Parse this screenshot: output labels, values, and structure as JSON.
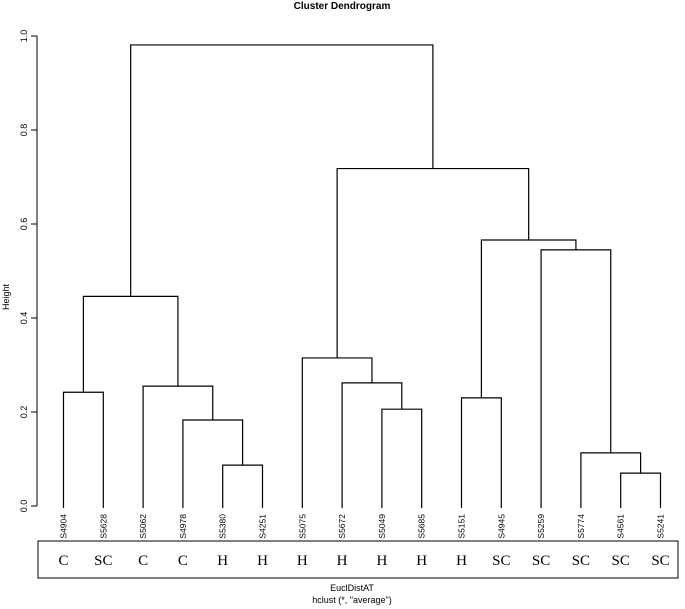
{
  "chart_data": {
    "type": "dendrogram",
    "title": "Cluster Dendrogram",
    "ylabel": "Height",
    "xlabel": "EuclDistAT",
    "sub": "hclust (*, \"average\")",
    "ylim": [
      0,
      1.0
    ],
    "yticks": [
      "0.0",
      "0.2",
      "0.4",
      "0.6",
      "0.8",
      "1.0"
    ],
    "leaves": [
      "S4904",
      "S5628",
      "S5062",
      "S4978",
      "S5380",
      "S4251",
      "S5075",
      "S5672",
      "S5049",
      "S5685",
      "S5151",
      "S4945",
      "S5259",
      "S5774",
      "S4561",
      "S5241"
    ],
    "groups": [
      "C",
      "SC",
      "C",
      "C",
      "H",
      "H",
      "H",
      "H",
      "H",
      "H",
      "H",
      "SC",
      "SC",
      "SC",
      "SC",
      "SC"
    ],
    "merges": [
      {
        "a": "S5380",
        "b": "S4251",
        "height": 0.087
      },
      {
        "a": "S4561",
        "b": "S5241",
        "height": 0.07
      },
      {
        "a": "S5774",
        "b": "m2",
        "height": 0.113
      },
      {
        "a": "S4978",
        "b": "m1",
        "height": 0.183
      },
      {
        "a": "S5049",
        "b": "S5685",
        "height": 0.206
      },
      {
        "a": "S5151",
        "b": "S4945",
        "height": 0.23
      },
      {
        "a": "S4904",
        "b": "S5628",
        "height": 0.242
      },
      {
        "a": "S5062",
        "b": "m4",
        "height": 0.255
      },
      {
        "a": "S5672",
        "b": "m5",
        "height": 0.262
      },
      {
        "a": "S5075",
        "b": "m9",
        "height": 0.315
      },
      {
        "a": "m7",
        "b": "m8",
        "height": 0.446
      },
      {
        "a": "S5259",
        "b": "m3",
        "height": 0.545
      },
      {
        "a": "m6",
        "b": "m12",
        "height": 0.566
      },
      {
        "a": "m10",
        "b": "m13",
        "height": 0.718
      },
      {
        "a": "m11",
        "b": "m14",
        "height": 0.981
      }
    ]
  }
}
